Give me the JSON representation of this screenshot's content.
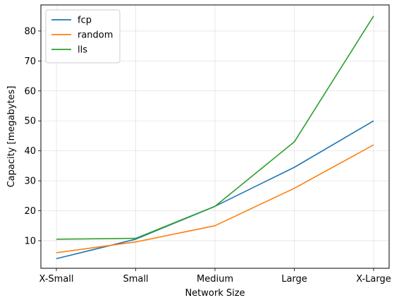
{
  "chart_data": {
    "type": "line",
    "title": "",
    "xlabel": "Network Size",
    "ylabel": "Capacity [megabytes]",
    "categories": [
      "X-Small",
      "Small",
      "Medium",
      "Large",
      "X-Large"
    ],
    "ylim": [
      0.8,
      88.7
    ],
    "yticks": [
      10,
      20,
      30,
      40,
      50,
      60,
      70,
      80
    ],
    "grid": true,
    "legend_position": "upper-left",
    "series": [
      {
        "name": "fcp",
        "color": "#1f77b4",
        "values": [
          4.0,
          10.5,
          21.5,
          34.5,
          50.0
        ]
      },
      {
        "name": "random",
        "color": "#ff7f0e",
        "values": [
          6.0,
          9.6,
          15.0,
          27.5,
          42.0
        ]
      },
      {
        "name": "lls",
        "color": "#2ca02c",
        "values": [
          10.5,
          10.8,
          21.5,
          43.0,
          85.0
        ]
      }
    ]
  }
}
